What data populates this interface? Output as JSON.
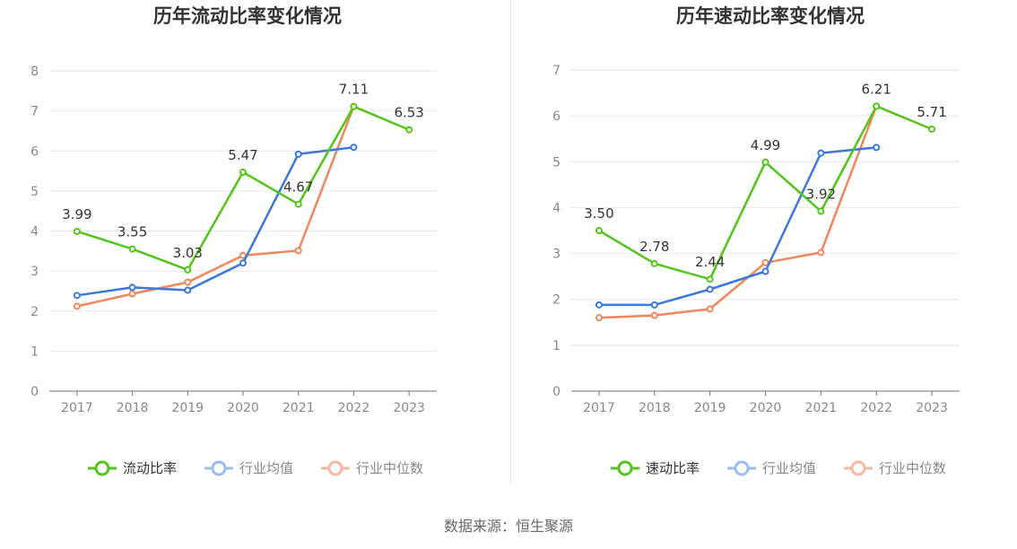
{
  "chart_data": [
    {
      "type": "line",
      "title": "历年流动比率变化情况",
      "categories": [
        "2017",
        "2018",
        "2019",
        "2020",
        "2021",
        "2022",
        "2023"
      ],
      "ylim": [
        0,
        8
      ],
      "yticks": [
        "0",
        "1",
        "2",
        "3",
        "4",
        "5",
        "6",
        "7",
        "8"
      ],
      "series": [
        {
          "name": "流动比率",
          "color": "#52c41a",
          "values": [
            3.99,
            3.55,
            3.03,
            5.47,
            4.67,
            7.11,
            6.53
          ],
          "labels": [
            "3.99",
            "3.55",
            "3.03",
            "5.47",
            "4.67",
            "7.11",
            "6.53"
          ]
        },
        {
          "name": "行业均值",
          "color": "#3a78dc",
          "values": [
            2.39,
            2.59,
            2.52,
            3.2,
            5.92,
            6.09,
            null
          ]
        },
        {
          "name": "行业中位数",
          "color": "#f0875a",
          "values": [
            2.12,
            2.43,
            2.72,
            3.39,
            3.51,
            7.11,
            null
          ]
        }
      ]
    },
    {
      "type": "line",
      "title": "历年速动比率变化情况",
      "categories": [
        "2017",
        "2018",
        "2019",
        "2020",
        "2021",
        "2022",
        "2023"
      ],
      "ylim": [
        0,
        7
      ],
      "yticks": [
        "0",
        "1",
        "2",
        "3",
        "4",
        "5",
        "6",
        "7"
      ],
      "series": [
        {
          "name": "速动比率",
          "color": "#52c41a",
          "values": [
            3.5,
            2.78,
            2.44,
            4.99,
            3.92,
            6.21,
            5.71
          ],
          "labels": [
            "3.50",
            "2.78",
            "2.44",
            "4.99",
            "3.92",
            "6.21",
            "5.71"
          ]
        },
        {
          "name": "行业均值",
          "color": "#3a78dc",
          "values": [
            1.88,
            1.88,
            2.22,
            2.61,
            5.19,
            5.31,
            null
          ]
        },
        {
          "name": "行业中位数",
          "color": "#f0875a",
          "values": [
            1.6,
            1.65,
            1.79,
            2.8,
            3.02,
            6.21,
            null
          ]
        }
      ]
    }
  ],
  "source": "数据来源：恒生聚源"
}
